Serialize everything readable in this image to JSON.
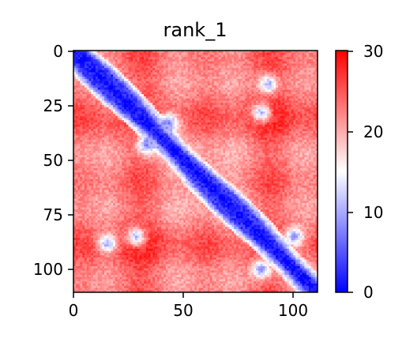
{
  "chart_data": {
    "type": "heatmap",
    "title": "rank_1",
    "xlabel": "",
    "ylabel": "",
    "xlim": [
      0,
      111
    ],
    "ylim": [
      111,
      0
    ],
    "x_ticks": [
      "0",
      "50",
      "100"
    ],
    "y_ticks": [
      "0",
      "25",
      "50",
      "75",
      "100"
    ],
    "colorbar": {
      "range": [
        0,
        30
      ],
      "ticks": [
        "0",
        "10",
        "20",
        "30"
      ],
      "colormap": "bwr",
      "low_color": "#0000ff",
      "mid_color": "#ffffff",
      "high_color": "#ff0000"
    },
    "matrix_size": 111,
    "features": {
      "diagonal": "low values (~0-5) along the main diagonal",
      "off_diagonal_blobs": [
        {
          "x": 33,
          "y": 43,
          "value": 8
        },
        {
          "x": 43,
          "y": 33,
          "value": 8
        },
        {
          "x": 88,
          "y": 15,
          "value": 10
        },
        {
          "x": 15,
          "y": 88,
          "value": 10
        },
        {
          "x": 85,
          "y": 28,
          "value": 11
        },
        {
          "x": 28,
          "y": 85,
          "value": 11
        },
        {
          "x": 100,
          "y": 85,
          "value": 9
        },
        {
          "x": 85,
          "y": 100,
          "value": 9
        }
      ]
    }
  }
}
